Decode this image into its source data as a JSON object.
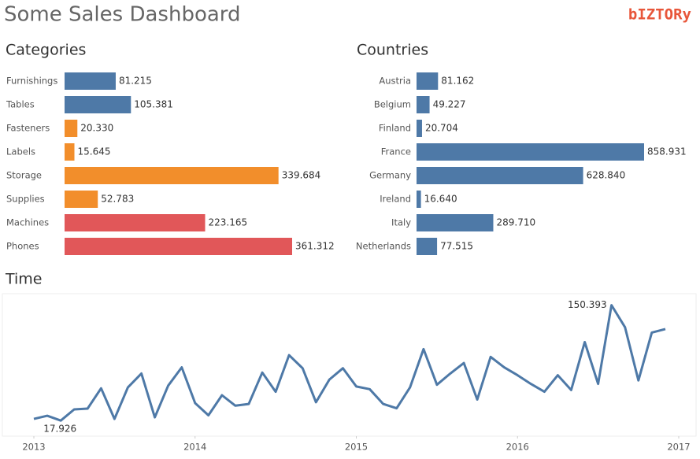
{
  "title": "Some Sales Dashboard",
  "logo": "bIZTORy",
  "chart_data": [
    {
      "type": "hbar",
      "title": "Categories",
      "categories": [
        "Furnishings",
        "Tables",
        "Fasteners",
        "Labels",
        "Storage",
        "Supplies",
        "Machines",
        "Phones"
      ],
      "values": [
        81215,
        105381,
        20330,
        15645,
        339684,
        52783,
        223165,
        361312
      ],
      "value_labels": [
        "81.215",
        "105.381",
        "20.330",
        "15.645",
        "339.684",
        "52.783",
        "223.165",
        "361.312"
      ],
      "colors": [
        "#4e79a7",
        "#4e79a7",
        "#f28e2b",
        "#f28e2b",
        "#f28e2b",
        "#f28e2b",
        "#e15759",
        "#e15759"
      ]
    },
    {
      "type": "hbar",
      "title": "Countries",
      "categories": [
        "Austria",
        "Belgium",
        "Finland",
        "France",
        "Germany",
        "Ireland",
        "Italy",
        "Netherlands"
      ],
      "values": [
        81162,
        49227,
        20704,
        858931,
        628840,
        16640,
        289710,
        77515
      ],
      "value_labels": [
        "81.162",
        "49.227",
        "20.704",
        "858.931",
        "628.840",
        "16.640",
        "289.710",
        "77.515"
      ],
      "colors": [
        "#4e79a7",
        "#4e79a7",
        "#4e79a7",
        "#4e79a7",
        "#4e79a7",
        "#4e79a7",
        "#4e79a7",
        "#4e79a7"
      ]
    },
    {
      "type": "line",
      "title": "Time",
      "color": "#4e79a7",
      "x": [
        2013,
        2013.083,
        2013.167,
        2013.25,
        2013.333,
        2013.417,
        2013.5,
        2013.583,
        2013.667,
        2013.75,
        2013.833,
        2013.917,
        2014,
        2014.083,
        2014.167,
        2014.25,
        2014.333,
        2014.417,
        2014.5,
        2014.583,
        2014.667,
        2014.75,
        2014.833,
        2014.917,
        2015,
        2015.083,
        2015.167,
        2015.25,
        2015.333,
        2015.417,
        2015.5,
        2015.583,
        2015.667,
        2015.75,
        2015.833,
        2015.917,
        2016,
        2016.083,
        2016.167,
        2016.25,
        2016.333,
        2016.417,
        2016.5,
        2016.583,
        2016.667,
        2016.75,
        2016.833,
        2016.917
      ],
      "values": [
        19800,
        23400,
        17926,
        30700,
        31600,
        55000,
        19800,
        56000,
        72000,
        21600,
        58000,
        79000,
        38000,
        24000,
        47000,
        35000,
        37000,
        73000,
        51000,
        93000,
        78000,
        39000,
        65000,
        78000,
        57000,
        54000,
        37000,
        32000,
        56000,
        100000,
        59000,
        72000,
        84000,
        42000,
        91000,
        79000,
        70000,
        60000,
        51000,
        70000,
        53000,
        108000,
        60000,
        150393,
        125000,
        64000,
        119000,
        123000
      ],
      "value_labels": [
        null,
        null,
        "17.926",
        null,
        null,
        null,
        null,
        null,
        null,
        null,
        null,
        null,
        null,
        null,
        null,
        null,
        null,
        null,
        null,
        null,
        null,
        null,
        null,
        null,
        null,
        null,
        null,
        null,
        null,
        null,
        null,
        null,
        null,
        null,
        null,
        null,
        null,
        null,
        null,
        null,
        null,
        null,
        null,
        "150.393",
        null,
        null,
        null,
        null
      ],
      "xlim": [
        2013,
        2017
      ],
      "xticks": [
        2013,
        2014,
        2015,
        2016,
        2017
      ],
      "ylim": [
        0,
        160000
      ]
    }
  ]
}
